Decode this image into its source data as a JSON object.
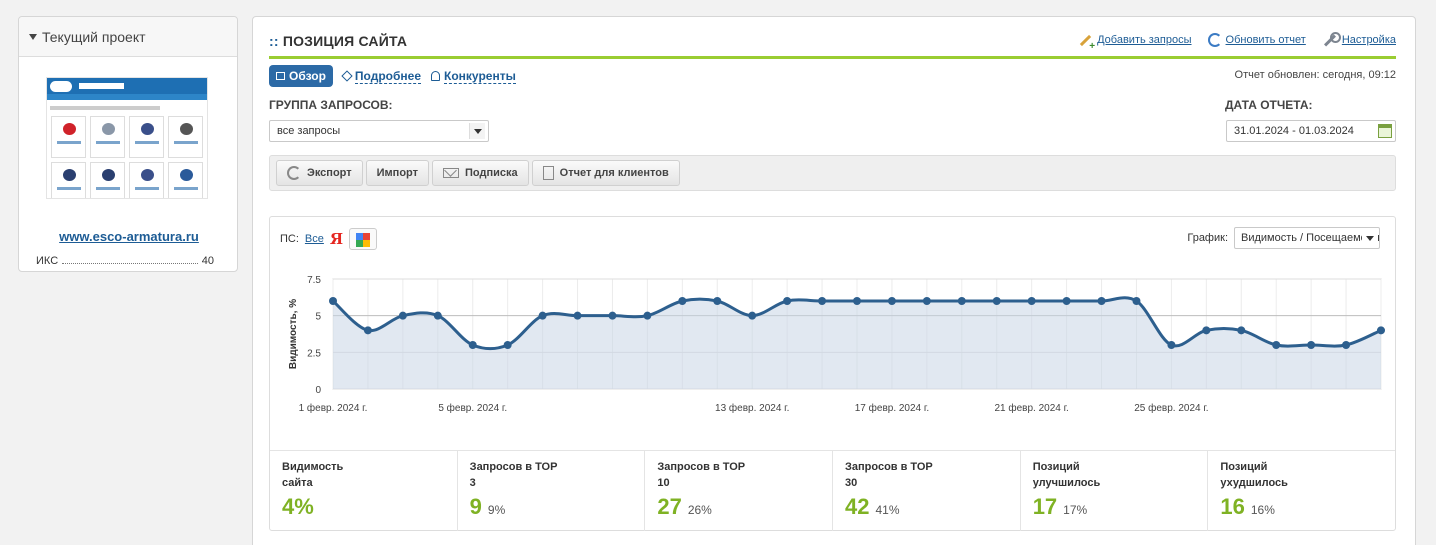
{
  "sidebar": {
    "title": "Текущий проект",
    "site": "www.esco-armatura.ru",
    "iks_label": "ИКС",
    "iks_value": "40"
  },
  "main": {
    "title_prefix": "::",
    "title": "ПОЗИЦИЯ САЙТА",
    "actions": [
      {
        "label": "Добавить запросы",
        "icon": "add-pencil-icon"
      },
      {
        "label": "Обновить отчет",
        "icon": "refresh-icon"
      },
      {
        "label": "Настройка",
        "icon": "wrench-icon"
      }
    ],
    "tabs": [
      {
        "label": "Обзор",
        "active": true
      },
      {
        "label": "Подробнее",
        "active": false
      },
      {
        "label": "Конкуренты",
        "active": false
      }
    ],
    "updated": "Отчет обновлен: сегодня, 09:12",
    "group_label": "ГРУППА ЗАПРОСОВ:",
    "group_value": "все запросы",
    "date_label": "ДАТА ОТЧЕТА:",
    "date_value": "31.01.2024 - 01.03.2024",
    "toolbar": [
      "Экспорт",
      "Импорт",
      "Подписка",
      "Отчет для клиентов"
    ]
  },
  "chart_controls": {
    "ps_label": "ПС:",
    "ps_all": "Все",
    "yandex": "Я",
    "graph_label": "График:",
    "graph_value": "Видимость / Посещаемость"
  },
  "chart_data": {
    "type": "area",
    "ylabel": "Видимость, %",
    "ylim": [
      0,
      7.5
    ],
    "yticks": [
      "0",
      "2.5",
      "5",
      "7.5"
    ],
    "xtick_labels": [
      {
        "index": 0,
        "label": "1 февр. 2024 г."
      },
      {
        "index": 4,
        "label": "5 февр. 2024 г."
      },
      {
        "index": 12,
        "label": "13 февр. 2024 г."
      },
      {
        "index": 16,
        "label": "17 февр. 2024 г."
      },
      {
        "index": 20,
        "label": "21 февр. 2024 г."
      },
      {
        "index": 24,
        "label": "25 февр. 2024 г."
      }
    ],
    "series": [
      {
        "color": "#2d5f8e",
        "values": [
          6,
          4,
          5,
          5,
          3,
          3,
          5,
          5,
          5,
          5,
          6,
          6,
          5,
          6,
          6,
          6,
          6,
          6,
          6,
          6,
          6,
          6,
          6,
          6,
          3,
          4,
          4,
          3,
          3,
          3,
          4
        ]
      }
    ]
  },
  "stats": [
    {
      "label": "Видимость сайта",
      "value": "4%",
      "pct": ""
    },
    {
      "label": "Запросов в ТОР 3",
      "value": "9",
      "pct": "9%"
    },
    {
      "label": "Запросов в ТОР 10",
      "value": "27",
      "pct": "26%"
    },
    {
      "label": "Запросов в ТОР 30",
      "value": "42",
      "pct": "41%"
    },
    {
      "label": "Позиций улучшилось",
      "value": "17",
      "pct": "17%"
    },
    {
      "label": "Позиций ухудшилось",
      "value": "16",
      "pct": "16%"
    }
  ],
  "colors": {
    "accent_green": "#9acd32",
    "link_blue": "#1d5c95",
    "stat_green": "#7fb224"
  }
}
